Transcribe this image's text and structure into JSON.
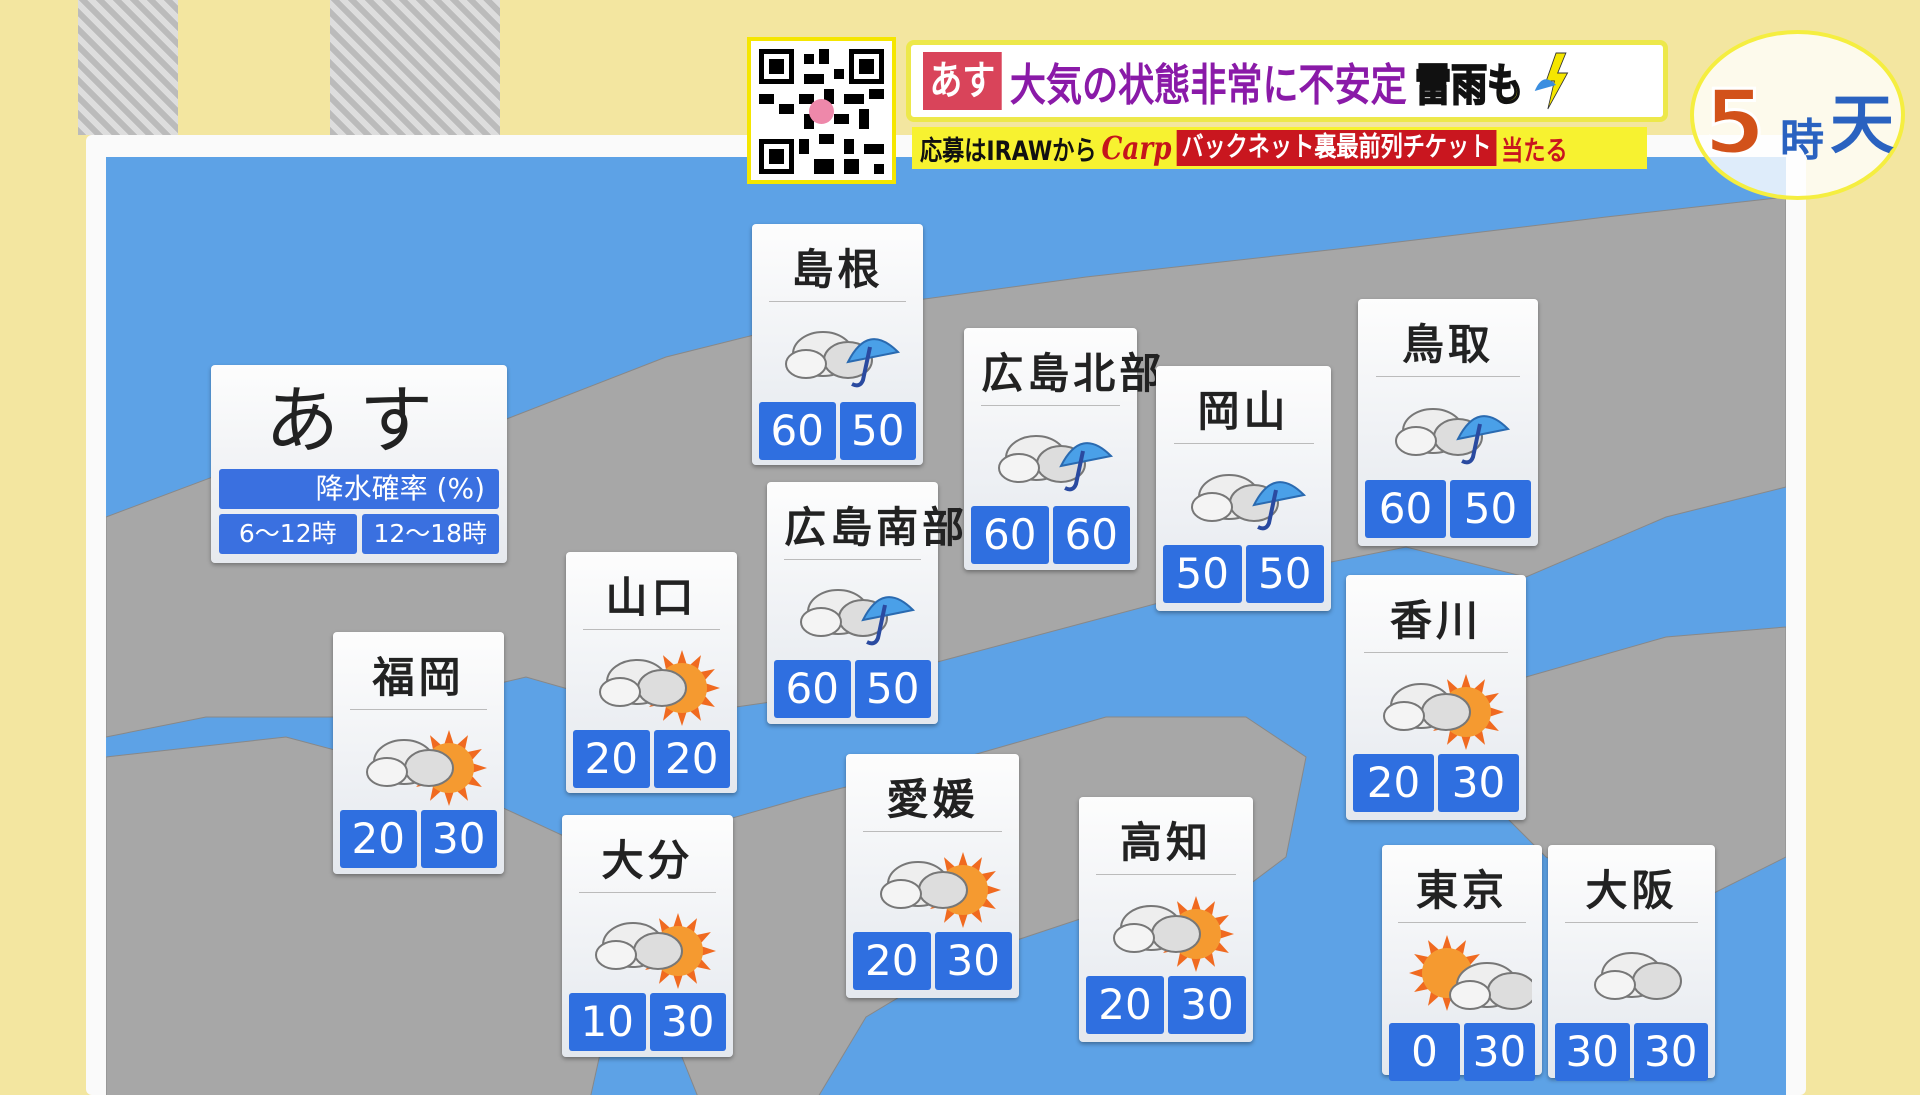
{
  "header": {
    "tag": "あす",
    "headline": "大気の状態非常に不安定",
    "highlight": "雷雨も",
    "sub_prefix": "応募はIRAWから",
    "carp_logo": "Carp",
    "sub_red": "バックネット裏最前列チケット",
    "sub_suffix": "当たる"
  },
  "logo": {
    "five": "5",
    "ji": "時",
    "ten": "天"
  },
  "legend": {
    "title": "あす",
    "label": "降水確率 (%)",
    "periods": [
      "6〜12時",
      "12〜18時"
    ]
  },
  "colors": {
    "sea": "#5da2e6",
    "land": "#a7a7a7",
    "value_bg": "#2f6fe0"
  },
  "cards": [
    {
      "name": "島根",
      "icon": "cloud-rain",
      "values": [
        "60",
        "50"
      ]
    },
    {
      "name": "広島北部",
      "icon": "cloud-rain",
      "values": [
        "60",
        "60"
      ]
    },
    {
      "name": "岡山",
      "icon": "cloud-rain",
      "values": [
        "50",
        "50"
      ]
    },
    {
      "name": "鳥取",
      "icon": "cloud-rain",
      "values": [
        "60",
        "50"
      ]
    },
    {
      "name": "広島南部",
      "icon": "cloud-rain",
      "values": [
        "60",
        "50"
      ]
    },
    {
      "name": "山口",
      "icon": "cloud-sun",
      "values": [
        "20",
        "20"
      ]
    },
    {
      "name": "香川",
      "icon": "cloud-sun",
      "values": [
        "20",
        "30"
      ]
    },
    {
      "name": "福岡",
      "icon": "cloud-sun",
      "values": [
        "20",
        "30"
      ]
    },
    {
      "name": "大分",
      "icon": "cloud-sun",
      "values": [
        "10",
        "30"
      ]
    },
    {
      "name": "愛媛",
      "icon": "cloud-sun",
      "values": [
        "20",
        "30"
      ]
    },
    {
      "name": "高知",
      "icon": "cloud-sun",
      "values": [
        "20",
        "30"
      ]
    },
    {
      "name": "東京",
      "icon": "sun-cloud",
      "values": [
        "0",
        "30"
      ]
    },
    {
      "name": "大阪",
      "icon": "cloud",
      "values": [
        "30",
        "30"
      ]
    }
  ]
}
